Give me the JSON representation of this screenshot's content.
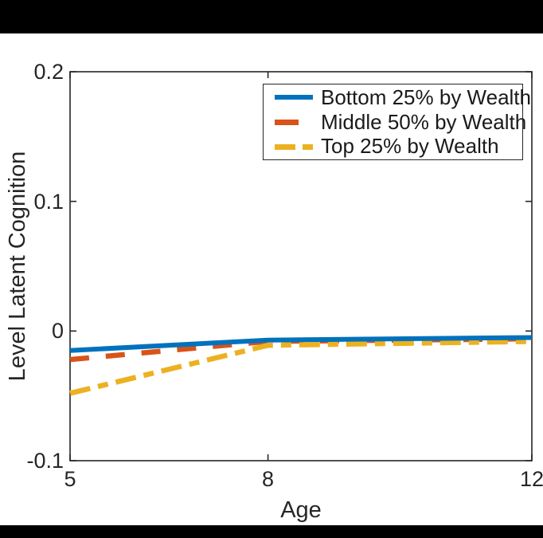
{
  "figure": {
    "background": "#ffffff",
    "letterbox_color": "#000000"
  },
  "chart_data": {
    "type": "line",
    "title": "",
    "xlabel": "Age",
    "ylabel": "Level Latent Cognition",
    "xlim": [
      5,
      12
    ],
    "ylim": [
      -0.1,
      0.2
    ],
    "xticks": [
      5,
      8,
      12
    ],
    "xtick_labels": [
      "5",
      "8",
      "12"
    ],
    "yticks": [
      0.2,
      0.1,
      0,
      -0.1
    ],
    "ytick_labels": [
      "0.2",
      "0.1",
      "0",
      "-0.1"
    ],
    "grid": false,
    "box": true,
    "tick_direction": "in",
    "axis_color": "#262626",
    "legend_position": "upper-right",
    "x": [
      5,
      8,
      12
    ],
    "series": [
      {
        "name": "Bottom 25% by Wealth",
        "color": "#0072BD",
        "style": "solid",
        "values": [
          -0.015,
          -0.007,
          -0.005
        ]
      },
      {
        "name": "Middle 50% by Wealth",
        "color": "#D95319",
        "style": "dashed",
        "values": [
          -0.022,
          -0.008,
          -0.006
        ]
      },
      {
        "name": "Top 25% by Wealth",
        "color": "#EDB120",
        "style": "dashdot",
        "values": [
          -0.048,
          -0.011,
          -0.008
        ]
      }
    ]
  }
}
